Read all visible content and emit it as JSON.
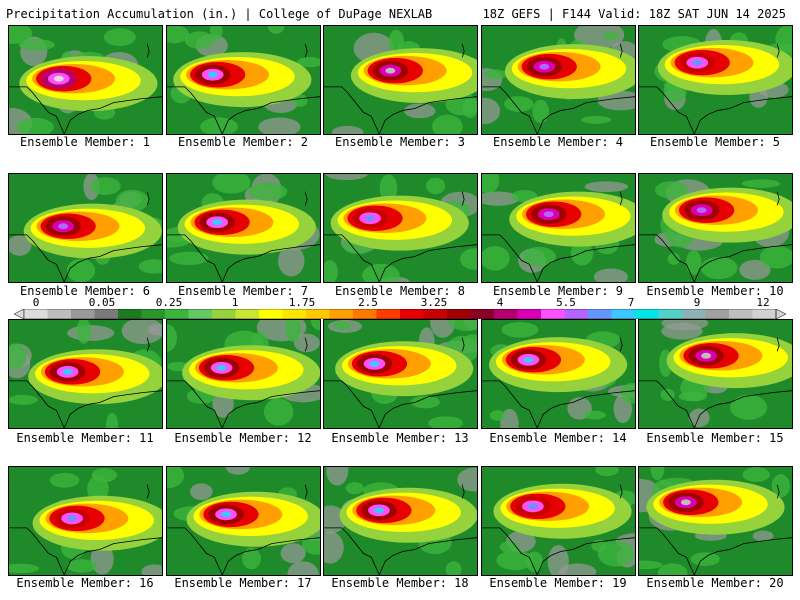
{
  "header": {
    "left": "Precipitation Accumulation (in.) | College of DuPage NEXLAB",
    "right": "18Z GEFS | F144 Valid: 18Z SAT JUN 14 2025"
  },
  "panel_label_prefix": "Ensemble Member:",
  "members": [
    {
      "label": "Ensemble Member: 1",
      "core": "hot"
    },
    {
      "label": "Ensemble Member: 2",
      "core": "cyan"
    },
    {
      "label": "Ensemble Member: 3",
      "core": "gray"
    },
    {
      "label": "Ensemble Member: 4",
      "core": "magenta"
    },
    {
      "label": "Ensemble Member: 5",
      "core": "blue"
    },
    {
      "label": "Ensemble Member: 6",
      "core": "magenta"
    },
    {
      "label": "Ensemble Member: 7",
      "core": "cyan"
    },
    {
      "label": "Ensemble Member: 8",
      "core": "blue"
    },
    {
      "label": "Ensemble Member: 9",
      "core": "magenta"
    },
    {
      "label": "Ensemble Member: 10",
      "core": "magenta"
    },
    {
      "label": "Ensemble Member: 11",
      "core": "cyan"
    },
    {
      "label": "Ensemble Member: 12",
      "core": "cyan"
    },
    {
      "label": "Ensemble Member: 13",
      "core": "cyan"
    },
    {
      "label": "Ensemble Member: 14",
      "core": "cyan"
    },
    {
      "label": "Ensemble Member: 15",
      "core": "gray"
    },
    {
      "label": "Ensemble Member: 16",
      "core": "blue"
    },
    {
      "label": "Ensemble Member: 17",
      "core": "cyan"
    },
    {
      "label": "Ensemble Member: 18",
      "core": "cyan"
    },
    {
      "label": "Ensemble Member: 19",
      "core": "blue"
    },
    {
      "label": "Ensemble Member: 20",
      "core": "gray"
    }
  ],
  "colorbar": {
    "ticks": [
      "0",
      "0.05",
      "0.25",
      "1",
      "1.75",
      "2.5",
      "3.25",
      "4",
      "5.5",
      "7",
      "9",
      "12"
    ],
    "colors": [
      "#dcdcdc",
      "#bdbdbd",
      "#9a9a9a",
      "#7a7a7a",
      "#1e7a1e",
      "#2a962a",
      "#3cb43c",
      "#64c864",
      "#96d23c",
      "#c8e632",
      "#ffff00",
      "#ffe600",
      "#ffc800",
      "#ffa000",
      "#ff7800",
      "#ff3c00",
      "#e60000",
      "#c80000",
      "#a00000",
      "#8c0028",
      "#b4006e",
      "#dc00b4",
      "#ff50ff",
      "#b464ff",
      "#6496ff",
      "#3cc8ff",
      "#00e6e6",
      "#50d2c8",
      "#8cb4b4",
      "#a0a0a0",
      "#bebebe",
      "#d2d2d2"
    ]
  }
}
